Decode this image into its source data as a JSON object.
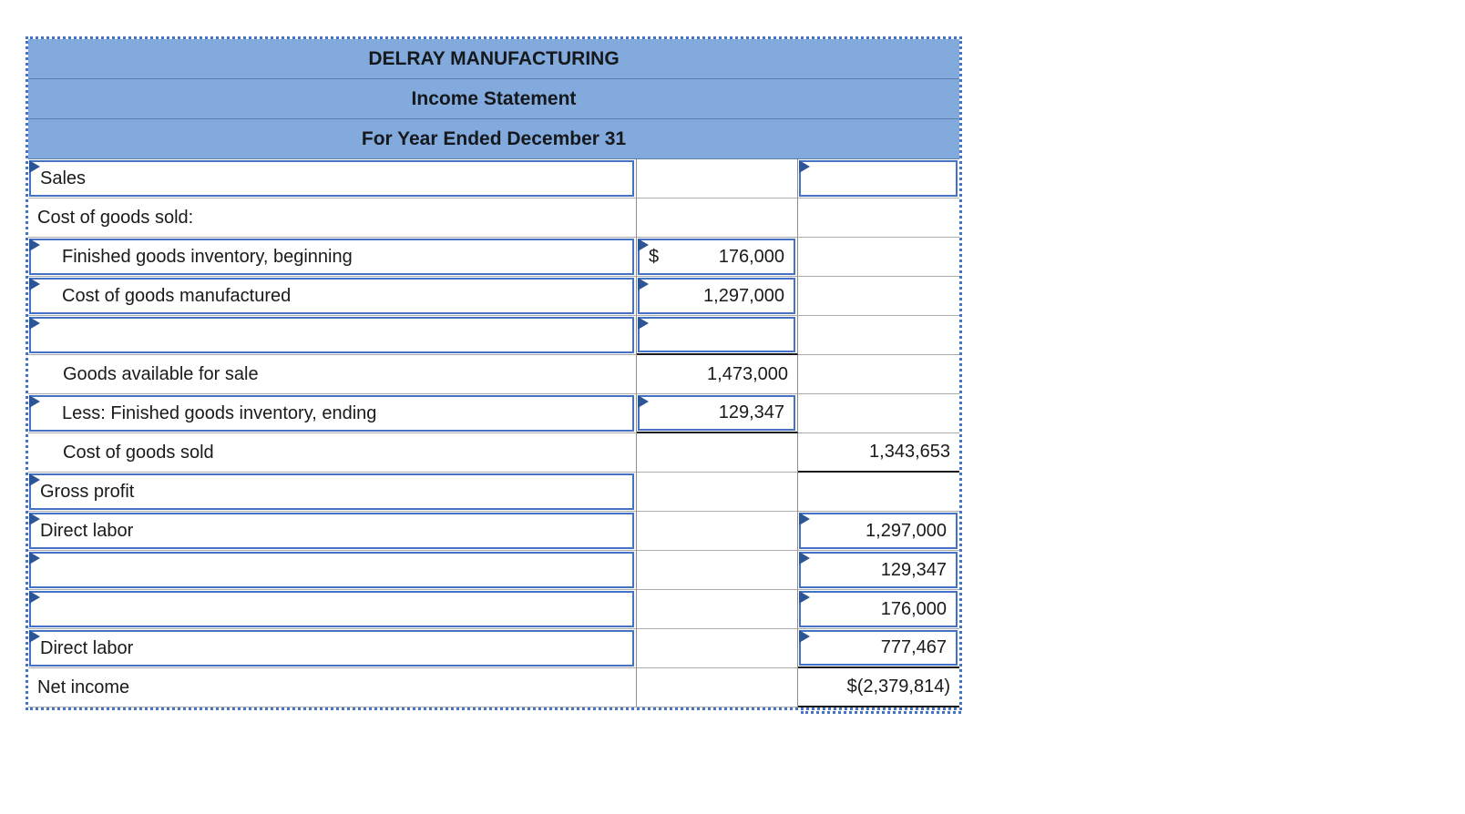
{
  "header": {
    "company": "DELRAY MANUFACTURING",
    "statement": "Income Statement",
    "period": "For Year Ended December 31"
  },
  "colors": {
    "header_bg": "#83AADC",
    "input_box_border": "#4473C5",
    "dropdown_marker": "#2C5598",
    "outer_dotted_border": "#4473C5"
  },
  "rows": [
    {
      "label": "Sales",
      "indent": false,
      "label_box": true,
      "mid": {
        "box": false,
        "prefix": "",
        "text": "",
        "sum_below": false
      },
      "right": {
        "box": true,
        "text": "",
        "sum_below": false
      }
    },
    {
      "label": "Cost of goods sold:",
      "indent": false,
      "label_box": false,
      "mid": {
        "box": false,
        "prefix": "",
        "text": "",
        "sum_below": false
      },
      "right": {
        "box": false,
        "text": "",
        "sum_below": false
      }
    },
    {
      "label": "Finished goods inventory, beginning",
      "indent": true,
      "label_box": true,
      "mid": {
        "box": true,
        "prefix": "$",
        "text": "176,000",
        "sum_below": false
      },
      "right": {
        "box": false,
        "text": "",
        "sum_below": false
      }
    },
    {
      "label": "Cost of goods manufactured",
      "indent": true,
      "label_box": true,
      "mid": {
        "box": true,
        "prefix": "",
        "text": "1,297,000",
        "sum_below": false
      },
      "right": {
        "box": false,
        "text": "",
        "sum_below": false
      }
    },
    {
      "label": "",
      "indent": true,
      "label_box": true,
      "mid": {
        "box": true,
        "prefix": "",
        "text": "",
        "sum_below": true
      },
      "right": {
        "box": false,
        "text": "",
        "sum_below": false
      }
    },
    {
      "label": "Goods available for sale",
      "indent": true,
      "label_box": false,
      "mid": {
        "box": false,
        "prefix": "",
        "text": "1,473,000",
        "sum_below": false
      },
      "right": {
        "box": false,
        "text": "",
        "sum_below": false
      }
    },
    {
      "label": "Less: Finished goods inventory, ending",
      "indent": true,
      "label_box": true,
      "mid": {
        "box": true,
        "prefix": "",
        "text": "129,347",
        "sum_below": true
      },
      "right": {
        "box": false,
        "text": "",
        "sum_below": false
      }
    },
    {
      "label": "Cost of goods sold",
      "indent": true,
      "label_box": false,
      "mid": {
        "box": false,
        "prefix": "",
        "text": "",
        "sum_below": false
      },
      "right": {
        "box": false,
        "text": "1,343,653",
        "sum_below": true
      }
    },
    {
      "label": "Gross profit",
      "indent": false,
      "label_box": true,
      "mid": {
        "box": false,
        "prefix": "",
        "text": "",
        "sum_below": false
      },
      "right": {
        "box": false,
        "text": "",
        "sum_below": false
      }
    },
    {
      "label": "Direct labor",
      "indent": false,
      "label_box": true,
      "mid": {
        "box": false,
        "prefix": "",
        "text": "",
        "sum_below": false
      },
      "right": {
        "box": true,
        "text": "1,297,000",
        "sum_below": false
      }
    },
    {
      "label": "",
      "indent": false,
      "label_box": true,
      "mid": {
        "box": false,
        "prefix": "",
        "text": "",
        "sum_below": false
      },
      "right": {
        "box": true,
        "text": "129,347",
        "sum_below": false
      }
    },
    {
      "label": "",
      "indent": false,
      "label_box": true,
      "mid": {
        "box": false,
        "prefix": "",
        "text": "",
        "sum_below": false
      },
      "right": {
        "box": true,
        "text": "176,000",
        "sum_below": false
      }
    },
    {
      "label": "Direct labor",
      "indent": false,
      "label_box": true,
      "mid": {
        "box": false,
        "prefix": "",
        "text": "",
        "sum_below": false
      },
      "right": {
        "box": true,
        "text": "777,467",
        "sum_below": true
      }
    },
    {
      "label": "Net income",
      "indent": false,
      "label_box": false,
      "mid": {
        "box": false,
        "prefix": "",
        "text": "",
        "sum_below": false
      },
      "right": {
        "box": false,
        "text": "$(2,379,814)",
        "sum_below": true
      }
    }
  ]
}
